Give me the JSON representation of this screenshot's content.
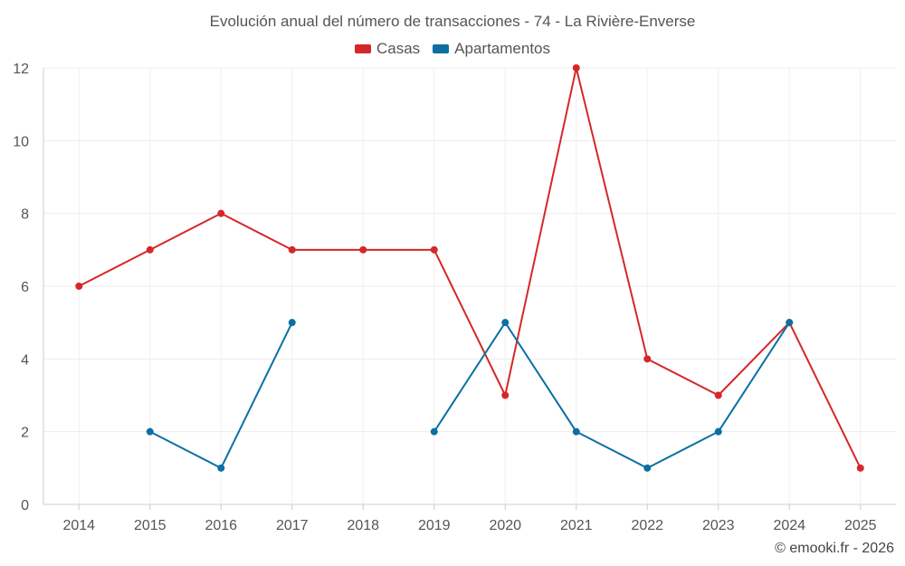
{
  "chart_data": {
    "type": "line",
    "title": "Evolución anual del número de transacciones - 74 - La Rivière-Enverse",
    "xlabel": "",
    "ylabel": "",
    "categories": [
      "2014",
      "2015",
      "2016",
      "2017",
      "2018",
      "2019",
      "2020",
      "2021",
      "2022",
      "2023",
      "2024",
      "2025"
    ],
    "ylim": [
      0,
      12
    ],
    "yticks": [
      0,
      2,
      4,
      6,
      8,
      10,
      12
    ],
    "grid": true,
    "legend_position": "top-center",
    "series": [
      {
        "name": "Casas",
        "color": "#d62728",
        "values": [
          6,
          7,
          8,
          7,
          7,
          7,
          3,
          12,
          4,
          3,
          5,
          1
        ]
      },
      {
        "name": "Apartamentos",
        "color": "#0c6fa3",
        "values": [
          null,
          2,
          1,
          5,
          null,
          2,
          5,
          2,
          1,
          2,
          5,
          null
        ]
      }
    ],
    "credit": "© emooki.fr - 2026"
  }
}
